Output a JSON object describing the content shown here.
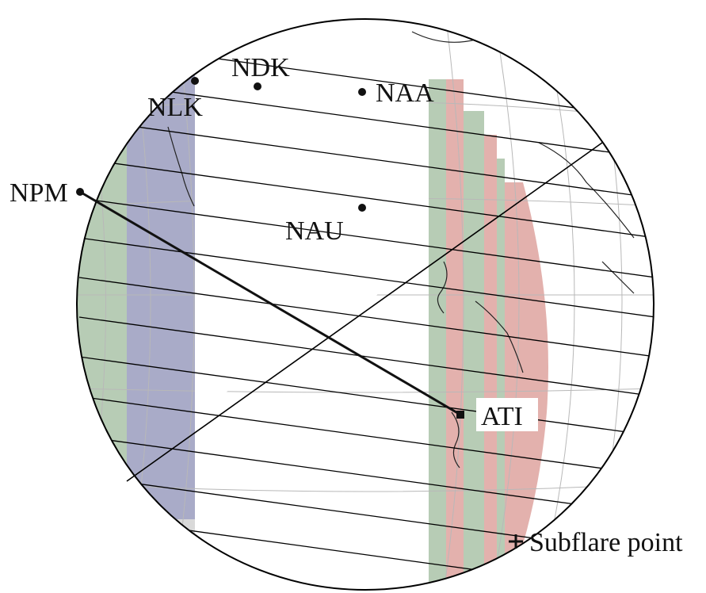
{
  "stations": [
    {
      "id": "NDK",
      "label": "NDK",
      "label_box": false
    },
    {
      "id": "NLK",
      "label": "NLK",
      "label_box": false
    },
    {
      "id": "NAA",
      "label": "NAA",
      "label_box": false
    },
    {
      "id": "NPM",
      "label": "NPM",
      "label_box": false
    },
    {
      "id": "NAU",
      "label": "NAU",
      "label_box": false
    }
  ],
  "receiver": {
    "id": "ATI",
    "label": "ATI",
    "marker": "square"
  },
  "subflare_point": {
    "label": "Subflare point",
    "marker": "plus"
  },
  "propagation_path": {
    "from": "NPM",
    "to": "ATI"
  },
  "colors": {
    "globe_outline": "#000000",
    "graticule": "#b8b8b8",
    "coastline": "#222222",
    "green_band": "#b7ccb5",
    "blue_band": "#a9abc8",
    "red_band": "#e3b1ad",
    "night_hatch": "#000000"
  },
  "legend_bands": [
    {
      "name": "green-band",
      "color": "green_band"
    },
    {
      "name": "blue-band",
      "color": "blue_band"
    },
    {
      "name": "red-band",
      "color": "red_band"
    }
  ]
}
